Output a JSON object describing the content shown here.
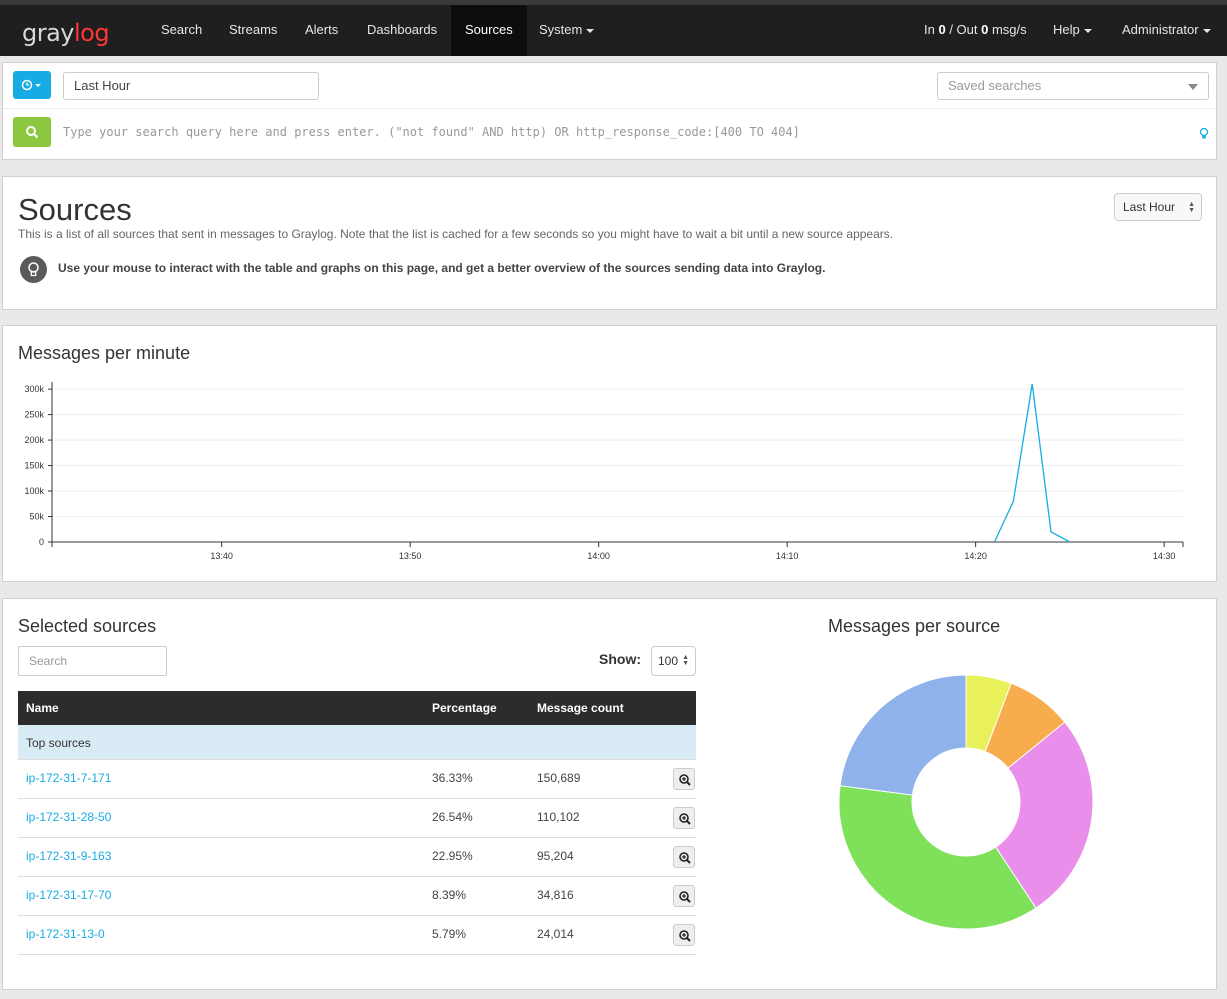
{
  "navbar": {
    "logo_part1": "gray",
    "logo_part2": "log",
    "items": [
      "Search",
      "Streams",
      "Alerts",
      "Dashboards",
      "Sources",
      "System"
    ],
    "active": "Sources",
    "throughput_prefix": "In ",
    "throughput_in": "0",
    "throughput_mid": " / Out ",
    "throughput_out": "0",
    "throughput_suffix": " msg/s",
    "help": "Help",
    "user": "Administrator"
  },
  "search": {
    "time_button_icon": "clock-icon",
    "range_value": "Last Hour",
    "saved_placeholder": "Saved searches",
    "query_placeholder": "Type your search query here and press enter. (\"not found\" AND http) OR http_response_code:[400 TO 404]"
  },
  "header": {
    "title": "Sources",
    "description": "This is a list of all sources that sent in messages to Graylog. Note that the list is cached for a few seconds so you might have to wait a bit until a new source appears.",
    "hint": "Use your mouse to interact with the table and graphs on this page, and get a better overview of the sources sending data into Graylog.",
    "range_select": "Last Hour"
  },
  "chart_section": {
    "title": "Messages per minute"
  },
  "sources_section": {
    "title": "Selected sources",
    "search_placeholder": "Search",
    "show_label": "Show:",
    "show_value": "100",
    "columns": [
      "Name",
      "Percentage",
      "Message count"
    ],
    "group_label": "Top sources",
    "rows": [
      {
        "name": "ip-172-31-7-171",
        "pct": "36.33%",
        "count": "150,689"
      },
      {
        "name": "ip-172-31-28-50",
        "pct": "26.54%",
        "count": "110,102"
      },
      {
        "name": "ip-172-31-9-163",
        "pct": "22.95%",
        "count": "95,204"
      },
      {
        "name": "ip-172-31-17-70",
        "pct": "8.39%",
        "count": "34,816"
      },
      {
        "name": "ip-172-31-13-0",
        "pct": "5.79%",
        "count": "24,014"
      }
    ]
  },
  "pie_section": {
    "title": "Messages per source"
  },
  "colors": {
    "accent": "#16ace3",
    "search_green": "#8dc63f",
    "line": "#16ace3",
    "pie": [
      "#e8f05a",
      "#f7ad4e",
      "#e98eea",
      "#7fe05a",
      "#8fb2ea"
    ]
  },
  "chart_data": [
    {
      "type": "line",
      "title": "Messages per minute",
      "x": [
        "14:21",
        "14:22",
        "14:23",
        "14:24",
        "14:25"
      ],
      "series": [
        {
          "values": [
            0,
            80000,
            310000,
            20000,
            0
          ]
        }
      ],
      "x_ticks": [
        "13:40",
        "13:50",
        "14:00",
        "14:10",
        "14:20",
        "14:30"
      ],
      "y_ticks": [
        "0",
        "50k",
        "100k",
        "150k",
        "200k",
        "250k",
        "300k"
      ],
      "ylim": [
        0,
        310000
      ],
      "grid": true
    },
    {
      "type": "pie",
      "title": "Messages per source",
      "categories": [
        "ip-172-31-13-0",
        "ip-172-31-17-70",
        "ip-172-31-28-50",
        "ip-172-31-7-171",
        "ip-172-31-9-163"
      ],
      "values": [
        24014,
        34816,
        110102,
        150689,
        95204
      ]
    }
  ]
}
